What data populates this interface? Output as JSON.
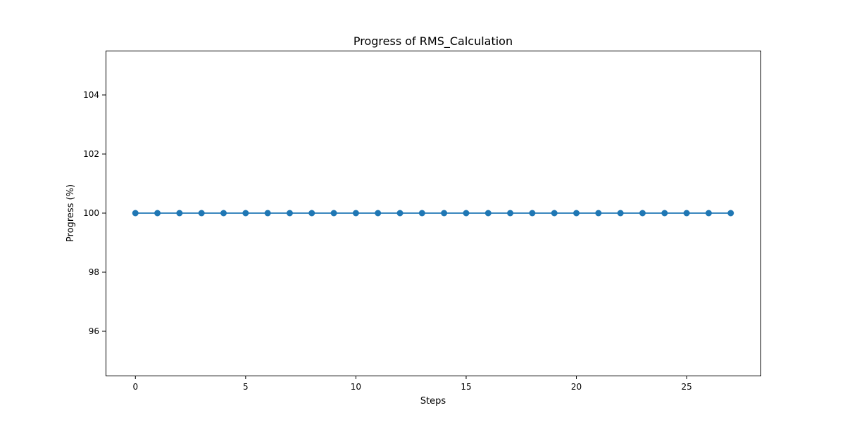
{
  "chart_data": {
    "type": "line",
    "title": "Progress of RMS_Calculation",
    "xlabel": "Steps",
    "ylabel": "Progress (%)",
    "xlim": [
      -1.35,
      28.35
    ],
    "ylim": [
      94.5,
      105.5
    ],
    "xticks": [
      0,
      5,
      10,
      15,
      20,
      25
    ],
    "yticks": [
      96,
      98,
      100,
      102,
      104
    ],
    "grid": false,
    "legend": "none",
    "series": [
      {
        "color": "#1f77b4",
        "marker": "circle",
        "x": [
          0,
          1,
          2,
          3,
          4,
          5,
          6,
          7,
          8,
          9,
          10,
          11,
          12,
          13,
          14,
          15,
          16,
          17,
          18,
          19,
          20,
          21,
          22,
          23,
          24,
          25,
          26,
          27
        ],
        "y": [
          100,
          100,
          100,
          100,
          100,
          100,
          100,
          100,
          100,
          100,
          100,
          100,
          100,
          100,
          100,
          100,
          100,
          100,
          100,
          100,
          100,
          100,
          100,
          100,
          100,
          100,
          100,
          100
        ]
      }
    ]
  }
}
